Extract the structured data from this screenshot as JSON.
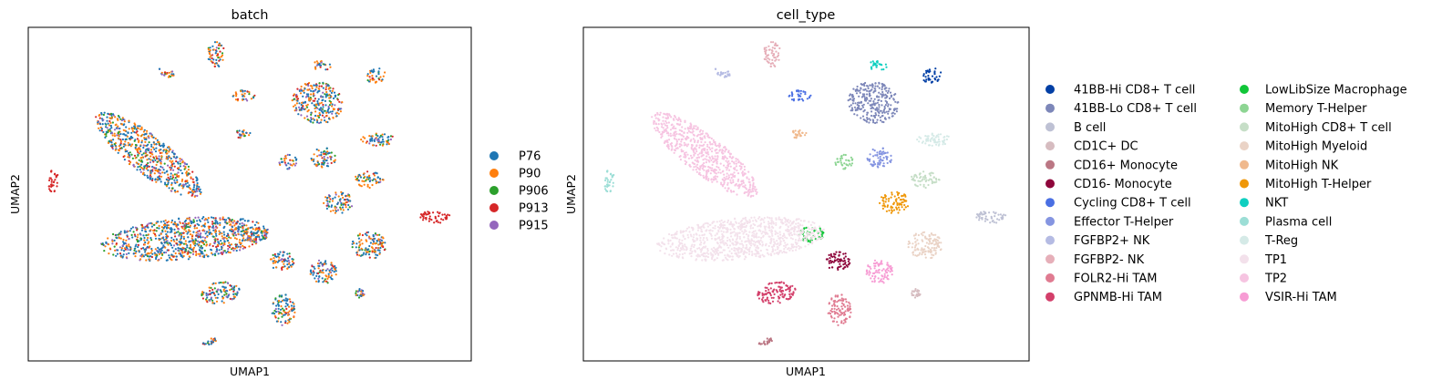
{
  "chart_data": [
    {
      "type": "scatter",
      "title": "batch",
      "xlabel": "UMAP1",
      "ylabel": "UMAP2",
      "grid": false,
      "legend_position": "right",
      "legend": [
        {
          "label": "P76",
          "color": "#1f77b4"
        },
        {
          "label": "P90",
          "color": "#ff7f0e"
        },
        {
          "label": "P906",
          "color": "#2ca02c"
        },
        {
          "label": "P913",
          "color": "#d62728"
        },
        {
          "label": "P915",
          "color": "#9467bd"
        }
      ]
    },
    {
      "type": "scatter",
      "title": "cell_type",
      "xlabel": "UMAP1",
      "ylabel": "UMAP2",
      "grid": false,
      "legend_position": "right",
      "legend_columns": [
        [
          {
            "label": "41BB-Hi CD8+ T cell",
            "color": "#023fa5"
          },
          {
            "label": "41BB-Lo CD8+ T cell",
            "color": "#7d87b9"
          },
          {
            "label": "B cell",
            "color": "#bec1d4"
          },
          {
            "label": "CD1C+ DC",
            "color": "#d6bcc0"
          },
          {
            "label": "CD16+ Monocyte",
            "color": "#bb7784"
          },
          {
            "label": "CD16- Monocyte",
            "color": "#8e063b"
          },
          {
            "label": "Cycling CD8+ T cell",
            "color": "#4a6fe3"
          },
          {
            "label": "Effector T-Helper",
            "color": "#8595e1"
          },
          {
            "label": "FGFBP2+ NK",
            "color": "#b5bbe3"
          },
          {
            "label": "FGFBP2- NK",
            "color": "#e6afb9"
          },
          {
            "label": "FOLR2-Hi TAM",
            "color": "#e07b91"
          },
          {
            "label": "GPNMB-Hi TAM",
            "color": "#d33f6a"
          }
        ],
        [
          {
            "label": "LowLibSize Macrophage",
            "color": "#11c638"
          },
          {
            "label": "Memory T-Helper",
            "color": "#8dd593"
          },
          {
            "label": "MitoHigh CD8+ T cell",
            "color": "#c6dec7"
          },
          {
            "label": "MitoHigh Myeloid",
            "color": "#ead3c6"
          },
          {
            "label": "MitoHigh NK",
            "color": "#f0b98d"
          },
          {
            "label": "MitoHigh T-Helper",
            "color": "#ef9708"
          },
          {
            "label": "NKT",
            "color": "#0fcfc0"
          },
          {
            "label": "Plasma cell",
            "color": "#9cded6"
          },
          {
            "label": "T-Reg",
            "color": "#d5eae7"
          },
          {
            "label": "TP1",
            "color": "#f3e1eb"
          },
          {
            "label": "TP2",
            "color": "#f6c4e1"
          },
          {
            "label": "VSIR-Hi TAM",
            "color": "#f79cd4"
          }
        ]
      ]
    }
  ]
}
